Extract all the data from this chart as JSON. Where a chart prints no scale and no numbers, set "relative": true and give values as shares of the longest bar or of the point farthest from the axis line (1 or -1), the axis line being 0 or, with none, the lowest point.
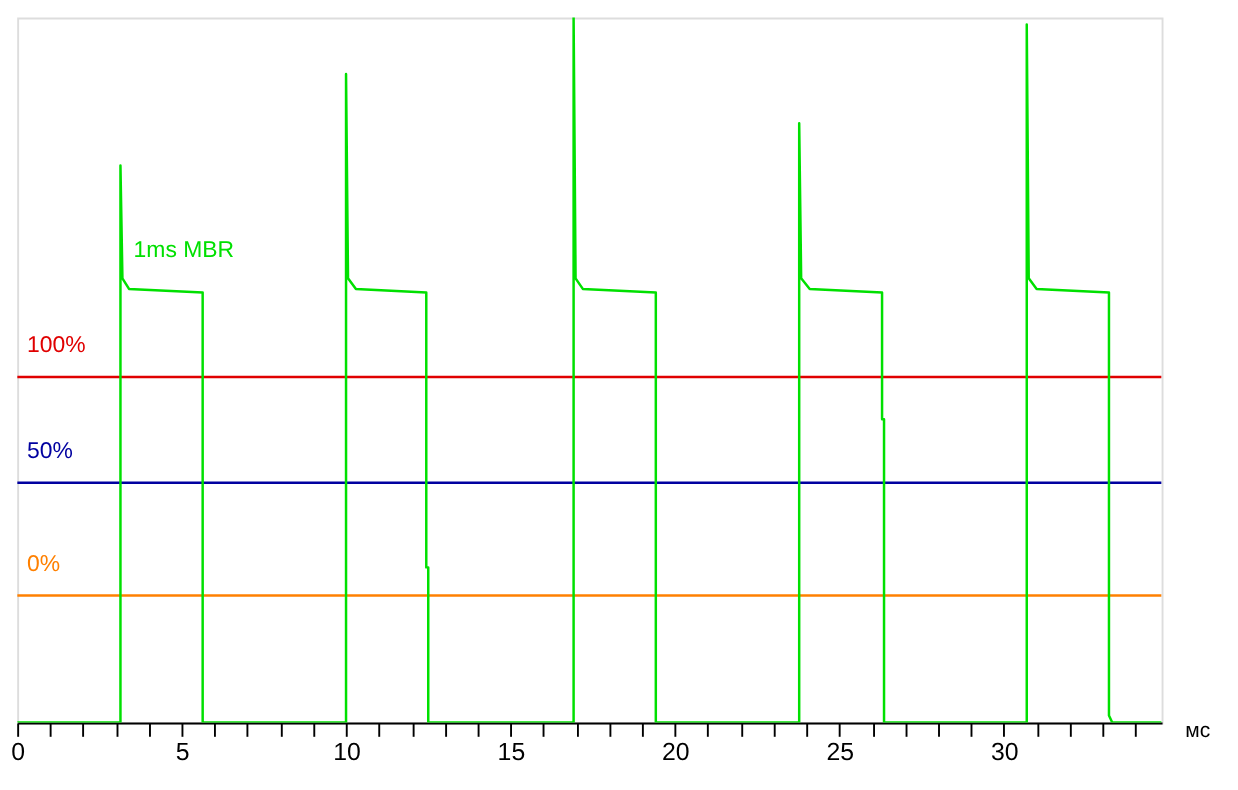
{
  "chart_data": {
    "type": "line",
    "relative": true,
    "xlabel": "мс",
    "xlim": [
      0,
      34.8
    ],
    "xticks": [
      0,
      {
        "value": 1,
        "label": null
      },
      {
        "value": 2,
        "label": null
      },
      {
        "value": 3,
        "label": null
      },
      {
        "value": 4,
        "label": null
      },
      5,
      {
        "value": 6,
        "label": null
      },
      {
        "value": 7,
        "label": null
      },
      {
        "value": 8,
        "label": null
      },
      {
        "value": 9,
        "label": null
      },
      10,
      {
        "value": 11,
        "label": null
      },
      {
        "value": 12,
        "label": null
      },
      {
        "value": 13,
        "label": null
      },
      {
        "value": 14,
        "label": null
      },
      15,
      {
        "value": 16,
        "label": null
      },
      {
        "value": 17,
        "label": null
      },
      {
        "value": 18,
        "label": null
      },
      {
        "value": 19,
        "label": null
      },
      20,
      {
        "value": 21,
        "label": null
      },
      {
        "value": 22,
        "label": null
      },
      {
        "value": 23,
        "label": null
      },
      {
        "value": 24,
        "label": null
      },
      25,
      {
        "value": 26,
        "label": null
      },
      {
        "value": 27,
        "label": null
      },
      {
        "value": 28,
        "label": null
      },
      {
        "value": 29,
        "label": null
      },
      30,
      {
        "value": 31,
        "label": null
      },
      {
        "value": 32,
        "label": null
      },
      {
        "value": 33,
        "label": null
      },
      {
        "value": 34,
        "label": null
      }
    ],
    "grid": false,
    "marker": "none",
    "line_style": "solid",
    "series": [
      {
        "name": "100%",
        "color": "#e00000",
        "x": [
          0,
          34.8
        ],
        "values": [
          0.49,
          0.49
        ]
      },
      {
        "name": "50%",
        "color": "#0000a0",
        "x": [
          0,
          34.8
        ],
        "values": [
          0.34,
          0.34
        ]
      },
      {
        "name": "0%",
        "color": "#ff8000",
        "x": [
          0,
          34.8
        ],
        "values": [
          0.18,
          0.18
        ]
      },
      {
        "name": "1ms MBR",
        "color": "#00e000",
        "x": [
          0,
          3.14,
          3.14,
          3.2,
          3.4,
          5.64,
          5.64,
          10.0,
          10.0,
          10.06,
          10.3,
          12.44,
          12.44,
          12.5,
          12.5,
          16.92,
          16.92,
          16.98,
          17.2,
          19.42,
          19.42,
          23.78,
          23.78,
          23.84,
          24.1,
          26.3,
          26.3,
          26.36,
          26.36,
          30.7,
          30.7,
          30.76,
          31.0,
          33.2,
          33.2,
          33.3,
          34.8
        ],
        "values": [
          0,
          0,
          0.79,
          0.63,
          0.615,
          0.61,
          0,
          0,
          0.92,
          0.63,
          0.615,
          0.61,
          0.22,
          0.22,
          0,
          0,
          1.0,
          0.63,
          0.615,
          0.61,
          0,
          0,
          0.85,
          0.63,
          0.615,
          0.61,
          0.43,
          0.43,
          0,
          0,
          0.99,
          0.63,
          0.615,
          0.61,
          0.01,
          0,
          0
        ]
      }
    ]
  }
}
